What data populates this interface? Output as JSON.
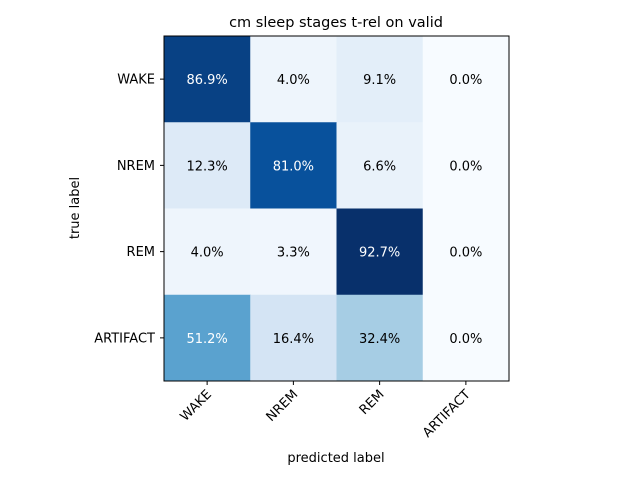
{
  "chart_data": {
    "type": "heatmap",
    "title": "cm sleep stages t-rel on valid",
    "xlabel": "predicted label",
    "ylabel": "true label",
    "x_categories": [
      "WAKE",
      "NREM",
      "REM",
      "ARTIFACT"
    ],
    "y_categories": [
      "WAKE",
      "NREM",
      "REM",
      "ARTIFACT"
    ],
    "value_unit": "%",
    "values": [
      [
        86.9,
        4.0,
        9.1,
        0.0
      ],
      [
        12.3,
        81.0,
        6.6,
        0.0
      ],
      [
        4.0,
        3.3,
        92.7,
        0.0
      ],
      [
        51.2,
        16.4,
        32.4,
        0.0
      ]
    ],
    "labels": [
      [
        "86.9%",
        "4.0%",
        "9.1%",
        "0.0%"
      ],
      [
        "12.3%",
        "81.0%",
        "6.6%",
        "0.0%"
      ],
      [
        "4.0%",
        "3.3%",
        "92.7%",
        "0.0%"
      ],
      [
        "51.2%",
        "16.4%",
        "32.4%",
        "0.0%"
      ]
    ],
    "colormap": "Blues",
    "vmin": 0.0,
    "vmax": 92.7,
    "grid": false,
    "legend": "none"
  }
}
